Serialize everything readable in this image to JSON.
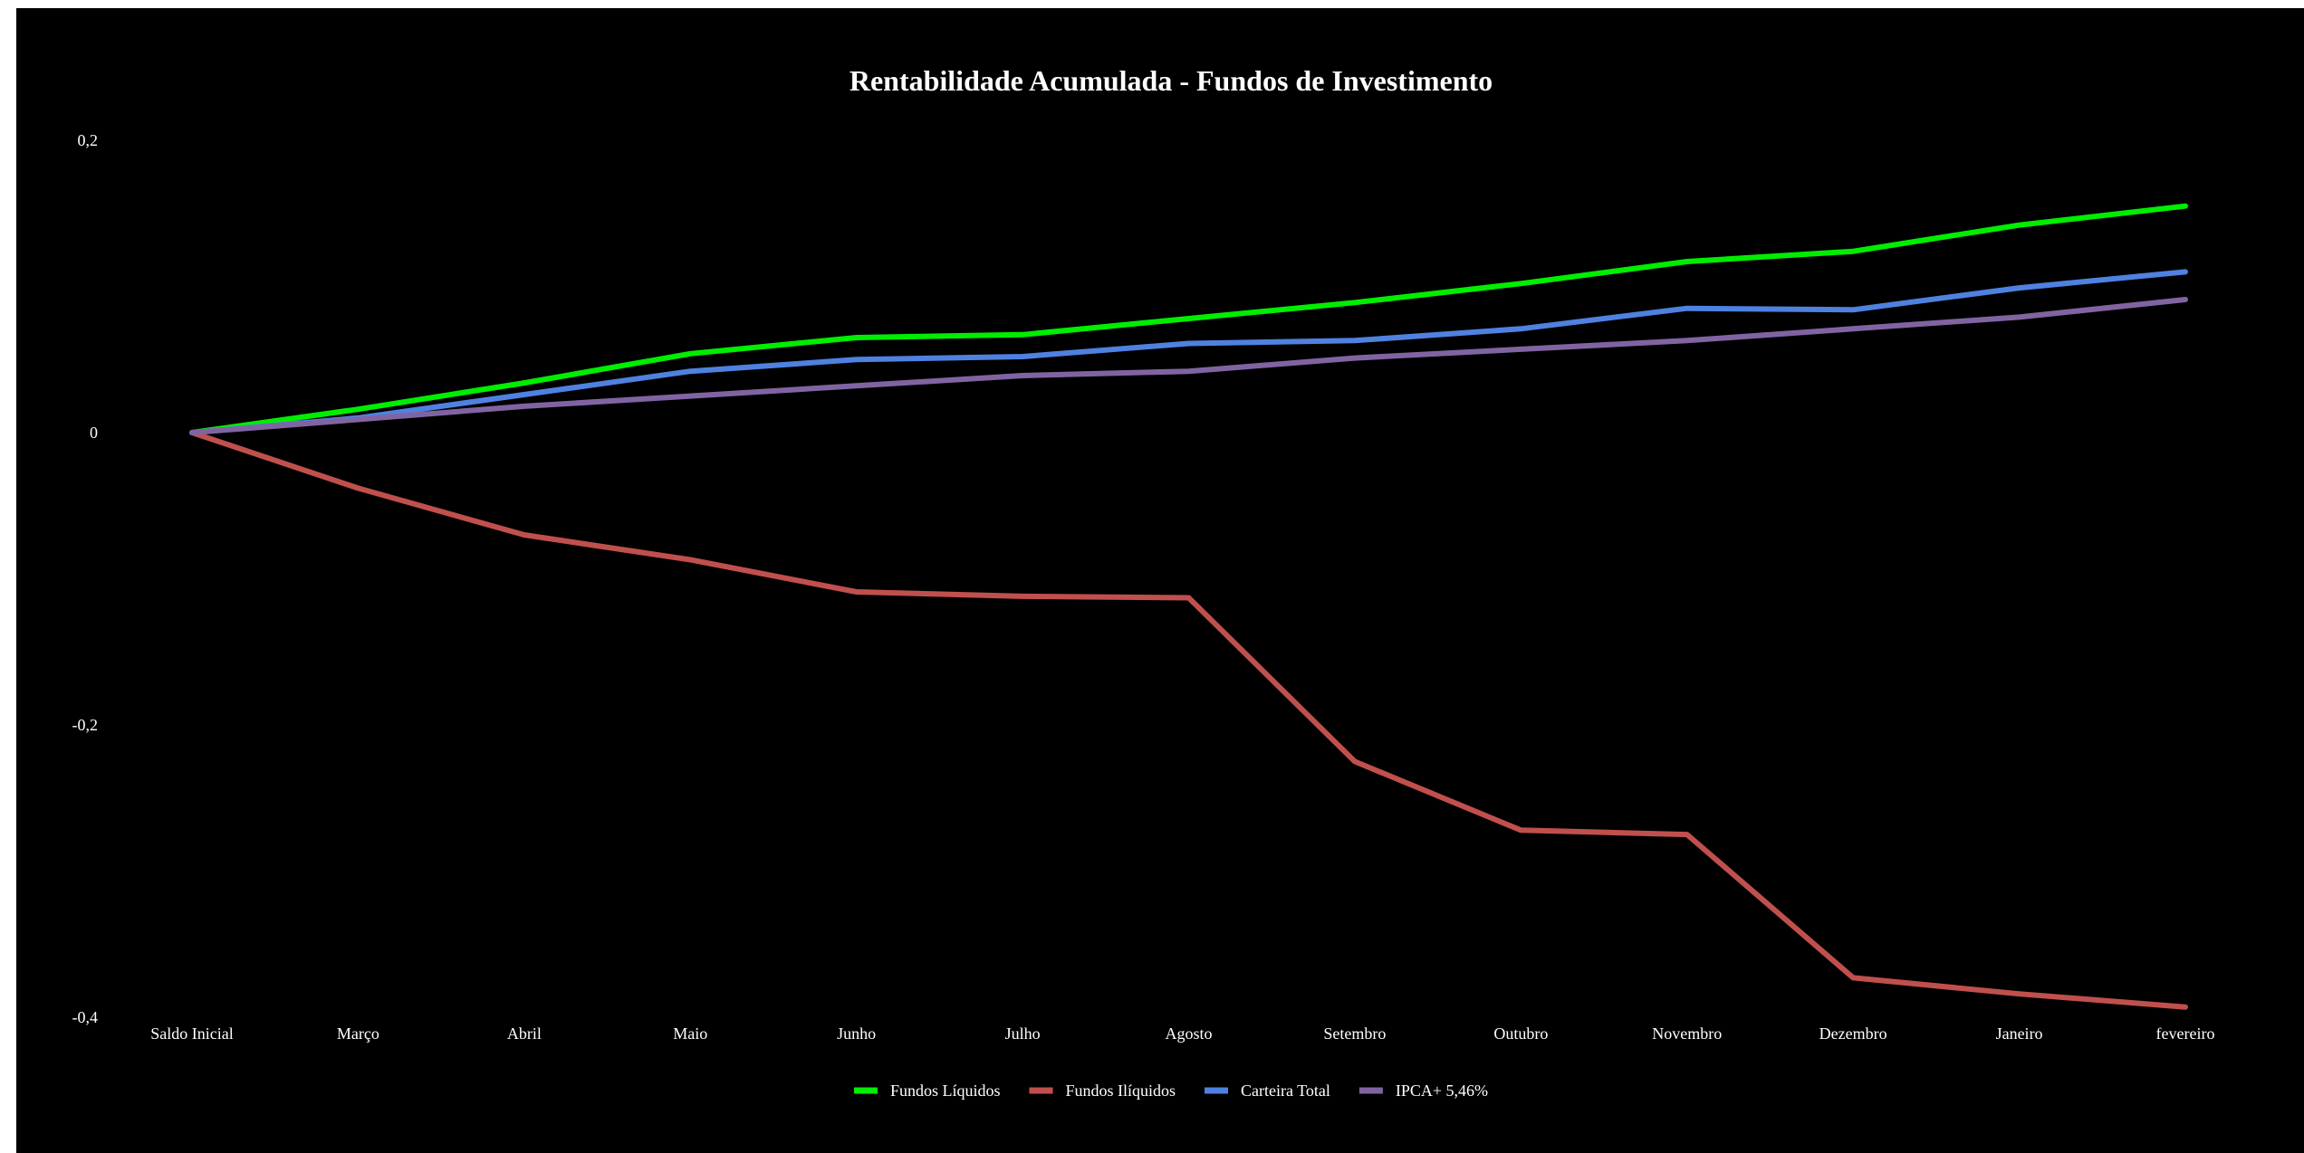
{
  "chart_data": {
    "type": "line",
    "title": "Rentabilidade Acumulada - Fundos de Investimento",
    "xlabel": "",
    "ylabel": "",
    "categories": [
      "Saldo Inicial",
      "Março",
      "Abril",
      "Maio",
      "Junho",
      "Julho",
      "Agosto",
      "Setembro",
      "Outubro",
      "Novembro",
      "Dezembro",
      "Janeiro",
      "fevereiro"
    ],
    "ylim": [
      -0.4,
      0.2
    ],
    "yticks": [
      0.2,
      0,
      -0.2,
      -0.4
    ],
    "ytick_labels": [
      "0,2",
      "0",
      "-0,2",
      "-0,4"
    ],
    "grid": false,
    "legend_position": "bottom",
    "series": [
      {
        "name": "Fundos Líquidos",
        "color": "#00ee00",
        "values": [
          0,
          0.016,
          0.034,
          0.054,
          0.065,
          0.067,
          0.078,
          0.089,
          0.102,
          0.117,
          0.124,
          0.142,
          0.155
        ]
      },
      {
        "name": "Fundos Ilíquidos",
        "color": "#c0504d",
        "values": [
          0,
          -0.038,
          -0.07,
          -0.087,
          -0.109,
          -0.112,
          -0.113,
          -0.225,
          -0.272,
          -0.275,
          -0.373,
          -0.384,
          -0.393
        ]
      },
      {
        "name": "Carteira Total",
        "color": "#4f81e0",
        "values": [
          0,
          0.01,
          0.026,
          0.042,
          0.05,
          0.052,
          0.061,
          0.063,
          0.071,
          0.085,
          0.084,
          0.099,
          0.11
        ]
      },
      {
        "name": "IPCA+ 5,46%",
        "color": "#8064a2",
        "values": [
          0,
          0.009,
          0.018,
          0.025,
          0.032,
          0.039,
          0.042,
          0.051,
          0.057,
          0.063,
          0.071,
          0.079,
          0.091
        ]
      }
    ]
  }
}
